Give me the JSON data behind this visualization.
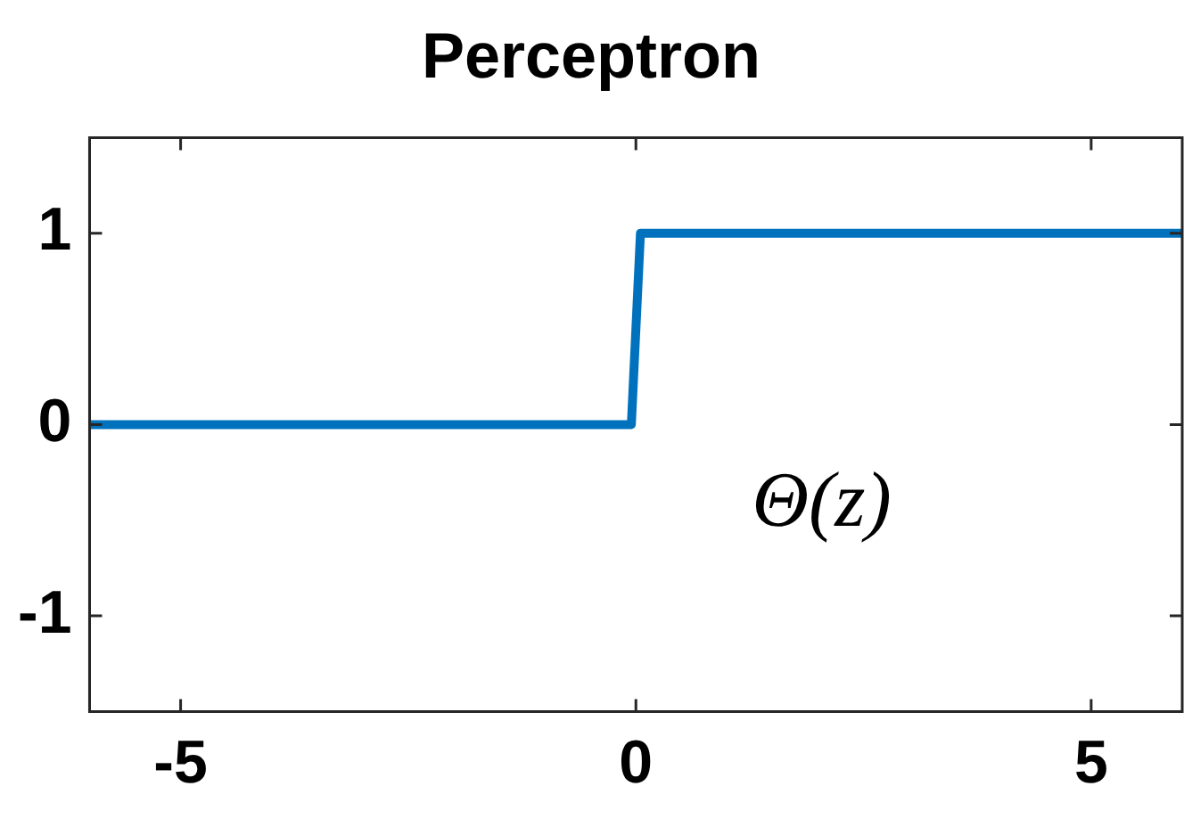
{
  "chart_data": {
    "type": "line",
    "title": "Perceptron",
    "x": [
      -6,
      -0.05,
      0.05,
      6
    ],
    "series": [
      {
        "color": "#0072bd",
        "values": [
          0,
          0,
          1,
          1
        ]
      }
    ],
    "xlim": [
      -6,
      6
    ],
    "xticks": [
      -5,
      0,
      5
    ],
    "ylim": [
      -1.5,
      1.5
    ],
    "yticks": [
      -1,
      0,
      1
    ],
    "annotations": [
      "Θ(z)"
    ],
    "grid": false,
    "legend": false,
    "marker": "none",
    "line_style": "solid"
  }
}
